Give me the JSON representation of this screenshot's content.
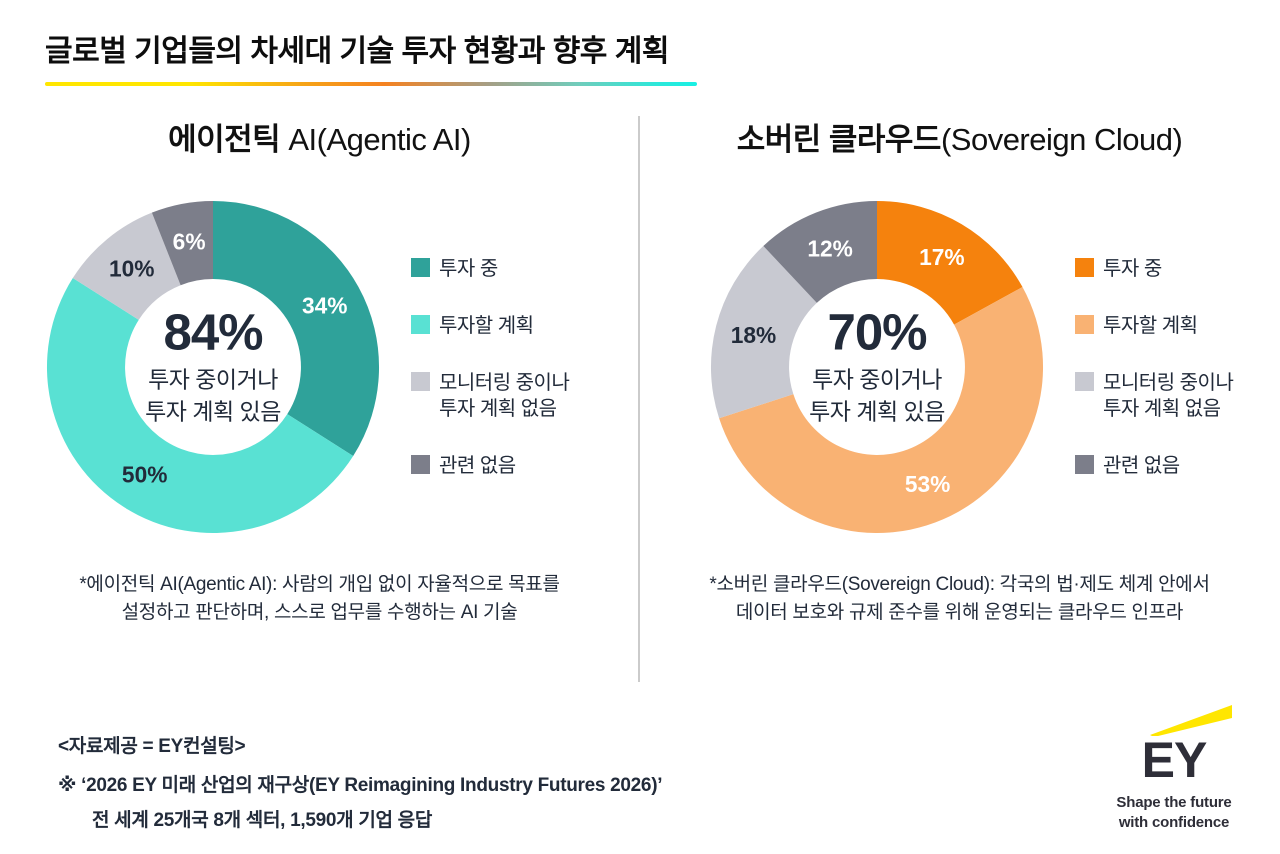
{
  "title": "글로벌 기업들의 차세대 기술 투자 현황과 향후 계획",
  "chart_data": [
    {
      "type": "donut",
      "title_ko": "에이전틱 ",
      "title_en": "AI(Agentic AI)",
      "center_value": "84%",
      "center_caption_line1": "투자 중이거나",
      "center_caption_line2": "투자 계획 있음",
      "start_angle_deg": 0,
      "direction": "clockwise",
      "segments": [
        {
          "label": "투자 중",
          "legend_label": "투자 중",
          "value": 34,
          "color": "#2FA29A",
          "label_color": "#FFFFFF"
        },
        {
          "label": "투자할 계획",
          "legend_label": "투자할 계획",
          "value": 50,
          "color": "#59E1D3",
          "label_color": "#222B3A"
        },
        {
          "label": "모니터링 중이나 투자 계획 없음",
          "legend_label": "모니터링 중이나\n투자 계획 없음",
          "value": 10,
          "color": "#C8C9D1",
          "label_color": "#222B3A"
        },
        {
          "label": "관련 없음",
          "legend_label": "관련 없음",
          "value": 6,
          "color": "#7C7E8A",
          "label_color": "#FFFFFF"
        }
      ],
      "footnote_line1": "*에이전틱 AI(Agentic AI): 사람의 개입 없이 자율적으로 목표를",
      "footnote_line2": "설정하고 판단하며, 스스로 업무를 수행하는 AI 기술"
    },
    {
      "type": "donut",
      "title_ko": "소버린 클라우드",
      "title_en": "(Sovereign Cloud)",
      "center_value": "70%",
      "center_caption_line1": "투자 중이거나",
      "center_caption_line2": "투자 계획 있음",
      "start_angle_deg": 0,
      "direction": "clockwise",
      "segments": [
        {
          "label": "투자 중",
          "legend_label": "투자 중",
          "value": 17,
          "color": "#F5820D",
          "label_color": "#FFFFFF"
        },
        {
          "label": "투자할 계획",
          "legend_label": "투자할 계획",
          "value": 53,
          "color": "#F9B273",
          "label_color": "#FFFFFF"
        },
        {
          "label": "모니터링 중이나 투자 계획 없음",
          "legend_label": "모니터링 중이나\n투자 계획 없음",
          "value": 18,
          "color": "#C8C9D1",
          "label_color": "#222B3A"
        },
        {
          "label": "관련 없음",
          "legend_label": "관련 없음",
          "value": 12,
          "color": "#7C7E8A",
          "label_color": "#FFFFFF"
        }
      ],
      "footnote_line1": "*소버린 클라우드(Sovereign Cloud): 각국의 법·제도 체계 안에서",
      "footnote_line2": "데이터 보호와 규제 준수를 위해 운영되는 클라우드 인프라"
    }
  ],
  "footer": {
    "source": "<자료제공 = EY컨설팅>",
    "note_line1": "※ ‘2026 EY 미래 산업의 재구상(EY Reimagining Industry Futures 2026)’",
    "note_line2": "전 세계 25개국 8개 섹터, 1,590개 기업 응답"
  },
  "logo": {
    "letters": "EY",
    "tagline_line1": "Shape the future",
    "tagline_line2": "with confidence",
    "beam_color": "#FFE600",
    "text_color": "#2E2E38"
  }
}
